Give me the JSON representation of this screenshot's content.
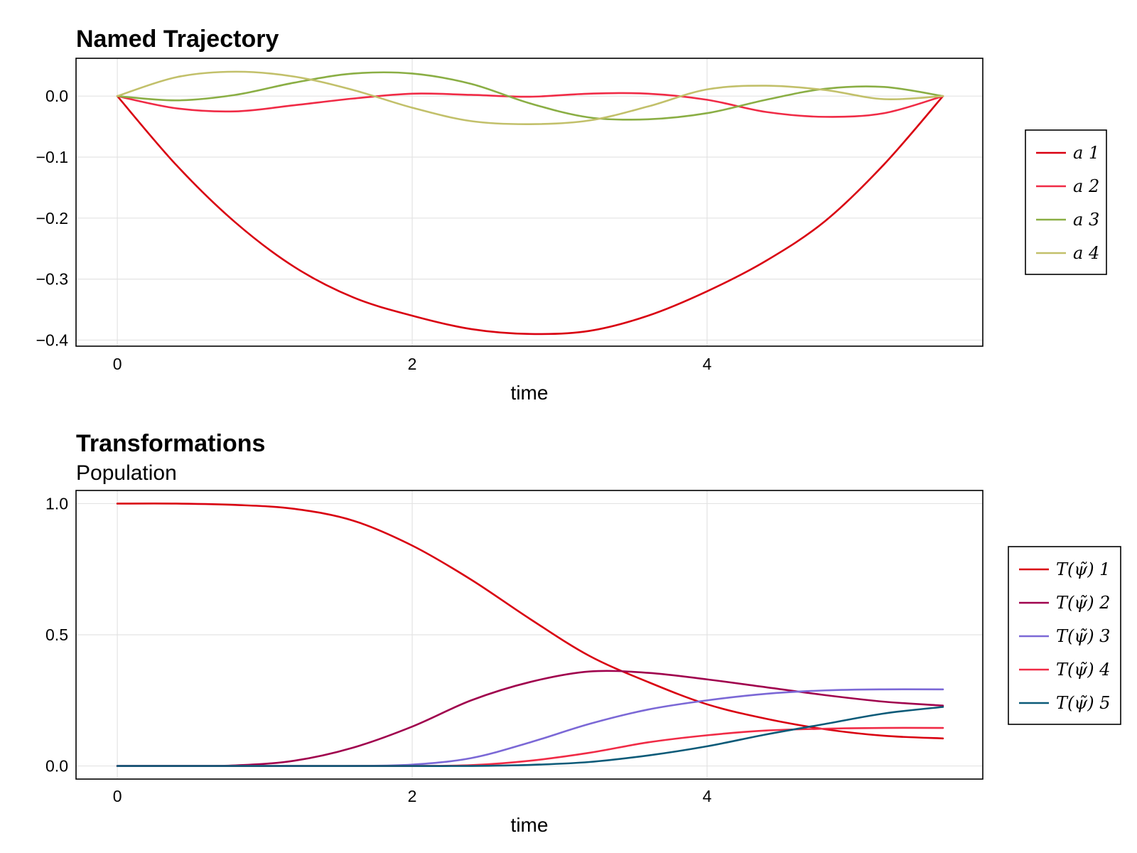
{
  "chart_data": [
    {
      "type": "line",
      "title": "Named Trajectory",
      "subtitle": "",
      "xlabel": "time",
      "ylabel": "",
      "xlim": [
        -0.28,
        5.87
      ],
      "ylim": [
        -0.41,
        0.062
      ],
      "xticks": [
        0,
        2,
        4
      ],
      "xtick_labels": [
        "0",
        "2",
        "4"
      ],
      "yticks": [
        0.0,
        -0.1,
        -0.2,
        -0.3,
        -0.4
      ],
      "ytick_labels": [
        "0.0",
        "−0.1",
        "−0.2",
        "−0.3",
        "−0.4"
      ],
      "grid": true,
      "legend_position": "right",
      "x": [
        0,
        0.4,
        0.8,
        1.2,
        1.6,
        2.0,
        2.4,
        2.8,
        3.2,
        3.6,
        4.0,
        4.4,
        4.8,
        5.2,
        5.6
      ],
      "series": [
        {
          "name": "a 1",
          "color": "#d90010",
          "values": [
            0,
            -0.113,
            -0.207,
            -0.28,
            -0.33,
            -0.36,
            -0.382,
            -0.39,
            -0.385,
            -0.36,
            -0.32,
            -0.27,
            -0.205,
            -0.112,
            0
          ]
        },
        {
          "name": "a 2",
          "color": "#f02b46",
          "values": [
            0,
            -0.02,
            -0.025,
            -0.015,
            -0.004,
            0.004,
            0.002,
            -0.001,
            0.004,
            0.004,
            -0.006,
            -0.026,
            -0.034,
            -0.028,
            0
          ]
        },
        {
          "name": "a 3",
          "color": "#8aae44",
          "values": [
            0,
            -0.007,
            0.002,
            0.022,
            0.037,
            0.037,
            0.02,
            -0.012,
            -0.035,
            -0.038,
            -0.028,
            -0.006,
            0.012,
            0.015,
            0
          ]
        },
        {
          "name": "a 4",
          "color": "#c2c06a",
          "values": [
            0,
            0.031,
            0.04,
            0.032,
            0.01,
            -0.019,
            -0.041,
            -0.046,
            -0.04,
            -0.017,
            0.011,
            0.017,
            0.01,
            -0.005,
            0
          ]
        }
      ]
    },
    {
      "type": "line",
      "title": "Transformations",
      "subtitle": "Population",
      "xlabel": "time",
      "ylabel": "",
      "xlim": [
        -0.28,
        5.87
      ],
      "ylim": [
        -0.05,
        1.05
      ],
      "xticks": [
        0,
        2,
        4
      ],
      "xtick_labels": [
        "0",
        "2",
        "4"
      ],
      "yticks": [
        1.0,
        0.5,
        0.0
      ],
      "ytick_labels": [
        "1.0",
        "0.5",
        "0.0"
      ],
      "grid": true,
      "legend_position": "right",
      "x": [
        0,
        0.4,
        0.8,
        1.2,
        1.6,
        2.0,
        2.4,
        2.8,
        3.2,
        3.6,
        4.0,
        4.4,
        4.8,
        5.2,
        5.6
      ],
      "series": [
        {
          "name": "T(ψ̃) 1",
          "color": "#d90010",
          "values": [
            1.0,
            1.0,
            0.995,
            0.98,
            0.935,
            0.84,
            0.71,
            0.56,
            0.42,
            0.32,
            0.235,
            0.18,
            0.14,
            0.115,
            0.105
          ]
        },
        {
          "name": "T(ψ̃) 2",
          "color": "#a0004d",
          "values": [
            0.0,
            0.0,
            0.002,
            0.02,
            0.07,
            0.15,
            0.25,
            0.32,
            0.36,
            0.355,
            0.33,
            0.3,
            0.27,
            0.245,
            0.23
          ]
        },
        {
          "name": "T(ψ̃) 3",
          "color": "#7b68d6",
          "values": [
            0.0,
            0.0,
            0.0,
            0.0,
            0.0,
            0.005,
            0.03,
            0.09,
            0.16,
            0.215,
            0.25,
            0.275,
            0.288,
            0.292,
            0.292
          ]
        },
        {
          "name": "T(ψ̃) 4",
          "color": "#f02b46",
          "values": [
            0.0,
            0.0,
            0.0,
            0.0,
            0.0,
            0.0,
            0.003,
            0.02,
            0.05,
            0.09,
            0.117,
            0.135,
            0.142,
            0.145,
            0.145
          ]
        },
        {
          "name": "T(ψ̃) 5",
          "color": "#0b5a78",
          "values": [
            0.0,
            0.0,
            0.0,
            0.0,
            0.0,
            0.0,
            0.0,
            0.004,
            0.015,
            0.04,
            0.075,
            0.12,
            0.16,
            0.2,
            0.225
          ]
        }
      ]
    }
  ]
}
